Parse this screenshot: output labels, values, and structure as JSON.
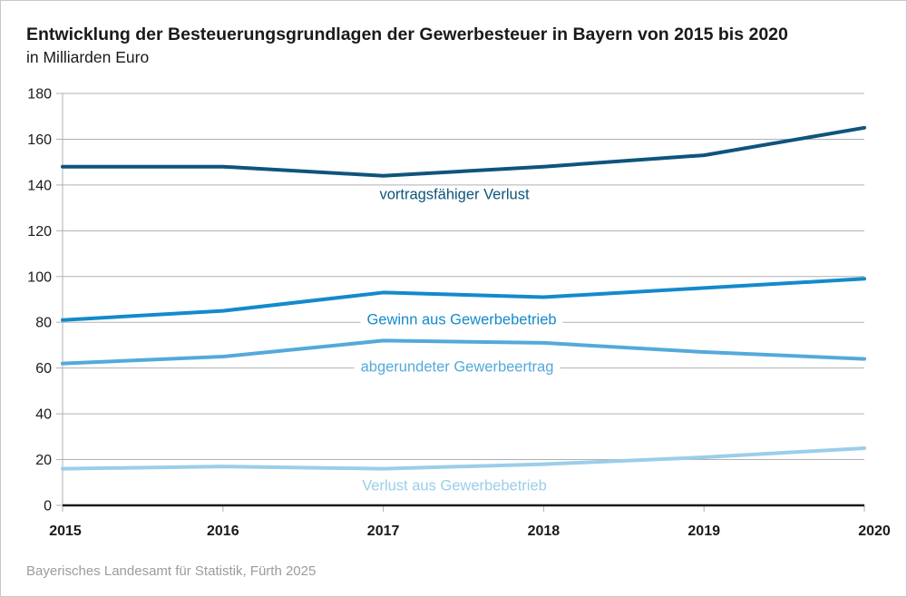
{
  "header": {
    "title": "Entwicklung der Besteuerungsgrundlagen der Gewerbesteuer in Bayern von 2015 bis 2020",
    "subtitle": "in Milliarden Euro"
  },
  "source": "Bayerisches Landesamt für Statistik, Fürth 2025",
  "colors": {
    "grid": "#b0b0b0",
    "axis_x": "#1a1a1a",
    "text": "#1a1a1a",
    "source_text": "#9c9c9c",
    "frame_border": "#c9c9c9"
  },
  "chart_data": {
    "type": "line",
    "title": "Entwicklung der Besteuerungsgrundlagen der Gewerbesteuer in Bayern von 2015 bis 2020",
    "subtitle": "in Milliarden Euro",
    "x": [
      2015,
      2016,
      2017,
      2018,
      2019,
      2020
    ],
    "xticks": [
      "2015",
      "2016",
      "2017",
      "2018",
      "2019",
      "2020"
    ],
    "yticks": [
      0,
      20,
      40,
      60,
      80,
      100,
      120,
      140,
      160,
      180
    ],
    "ylim": [
      0,
      180
    ],
    "grid": "horizontal-only",
    "legend": "inline-labels-on-lines",
    "series": [
      {
        "name": "vortragsfähiger Verlust",
        "color": "#0f547c",
        "values": [
          148,
          148,
          144,
          148,
          153,
          165
        ]
      },
      {
        "name": "Gewinn aus Gewerbebetrieb",
        "color": "#148aca",
        "values": [
          81,
          85,
          93,
          91,
          95,
          99
        ]
      },
      {
        "name": "abgerundeter Gewerbeertrag",
        "color": "#54a9da",
        "values": [
          62,
          65,
          72,
          71,
          67,
          64
        ]
      },
      {
        "name": "Verlust aus Gewerbebetrieb",
        "color": "#9bceea",
        "values": [
          16,
          17,
          16,
          18,
          21,
          25
        ]
      }
    ]
  }
}
